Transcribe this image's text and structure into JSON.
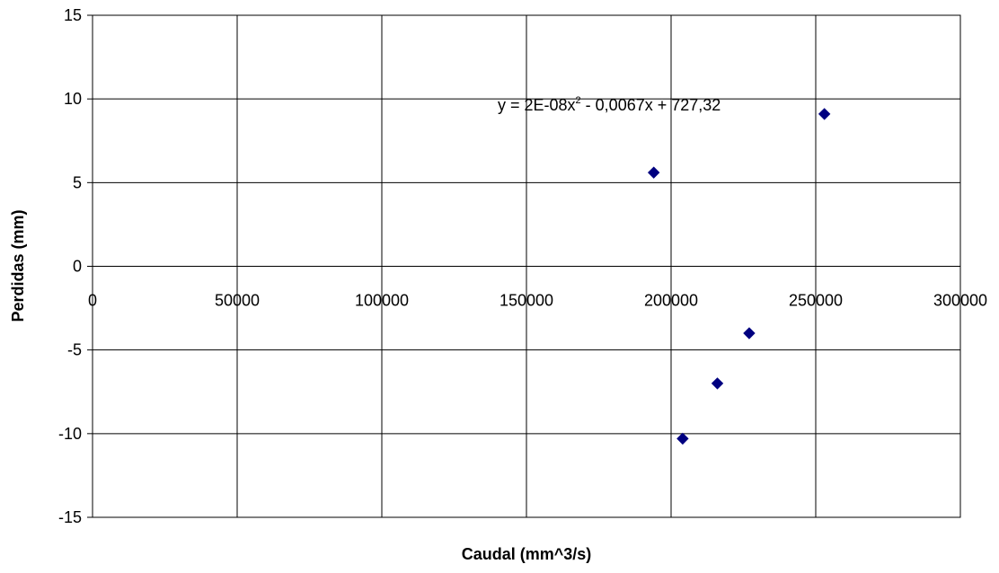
{
  "chart_data": {
    "type": "scatter",
    "xlabel": "Caudal (mm^3/s)",
    "ylabel": "Perdidas (mm)",
    "xlim": [
      0,
      300000
    ],
    "ylim": [
      -15,
      15
    ],
    "x_ticks": [
      0,
      50000,
      100000,
      150000,
      200000,
      250000,
      300000
    ],
    "x_tick_labels": [
      "0",
      "50000",
      "100000",
      "150000",
      "200000",
      "250000",
      "300000"
    ],
    "y_ticks": [
      -15,
      -10,
      -5,
      0,
      5,
      10,
      15
    ],
    "y_tick_labels": [
      "-15",
      "-10",
      "-5",
      "0",
      "5",
      "10",
      "15"
    ],
    "grid": true,
    "legend": "none",
    "series": [
      {
        "marker": "diamond",
        "color": "#000080",
        "points": [
          {
            "x": 194000,
            "y": 5.6
          },
          {
            "x": 204000,
            "y": -10.3
          },
          {
            "x": 216000,
            "y": -7.0
          },
          {
            "x": 227000,
            "y": -4.0
          },
          {
            "x": 253000,
            "y": 9.1
          }
        ]
      }
    ],
    "trendline": {
      "type": "polynomial",
      "color": "#000000",
      "x_range": [
        194000,
        253000
      ],
      "coefficients": {
        "a": 2e-08,
        "b": -0.0067,
        "c": 727.32
      }
    },
    "annotation": {
      "equation_prefix": "y = 2E-08x",
      "equation_sup": "2",
      "equation_suffix": " - 0,0067x + 727,32"
    }
  }
}
